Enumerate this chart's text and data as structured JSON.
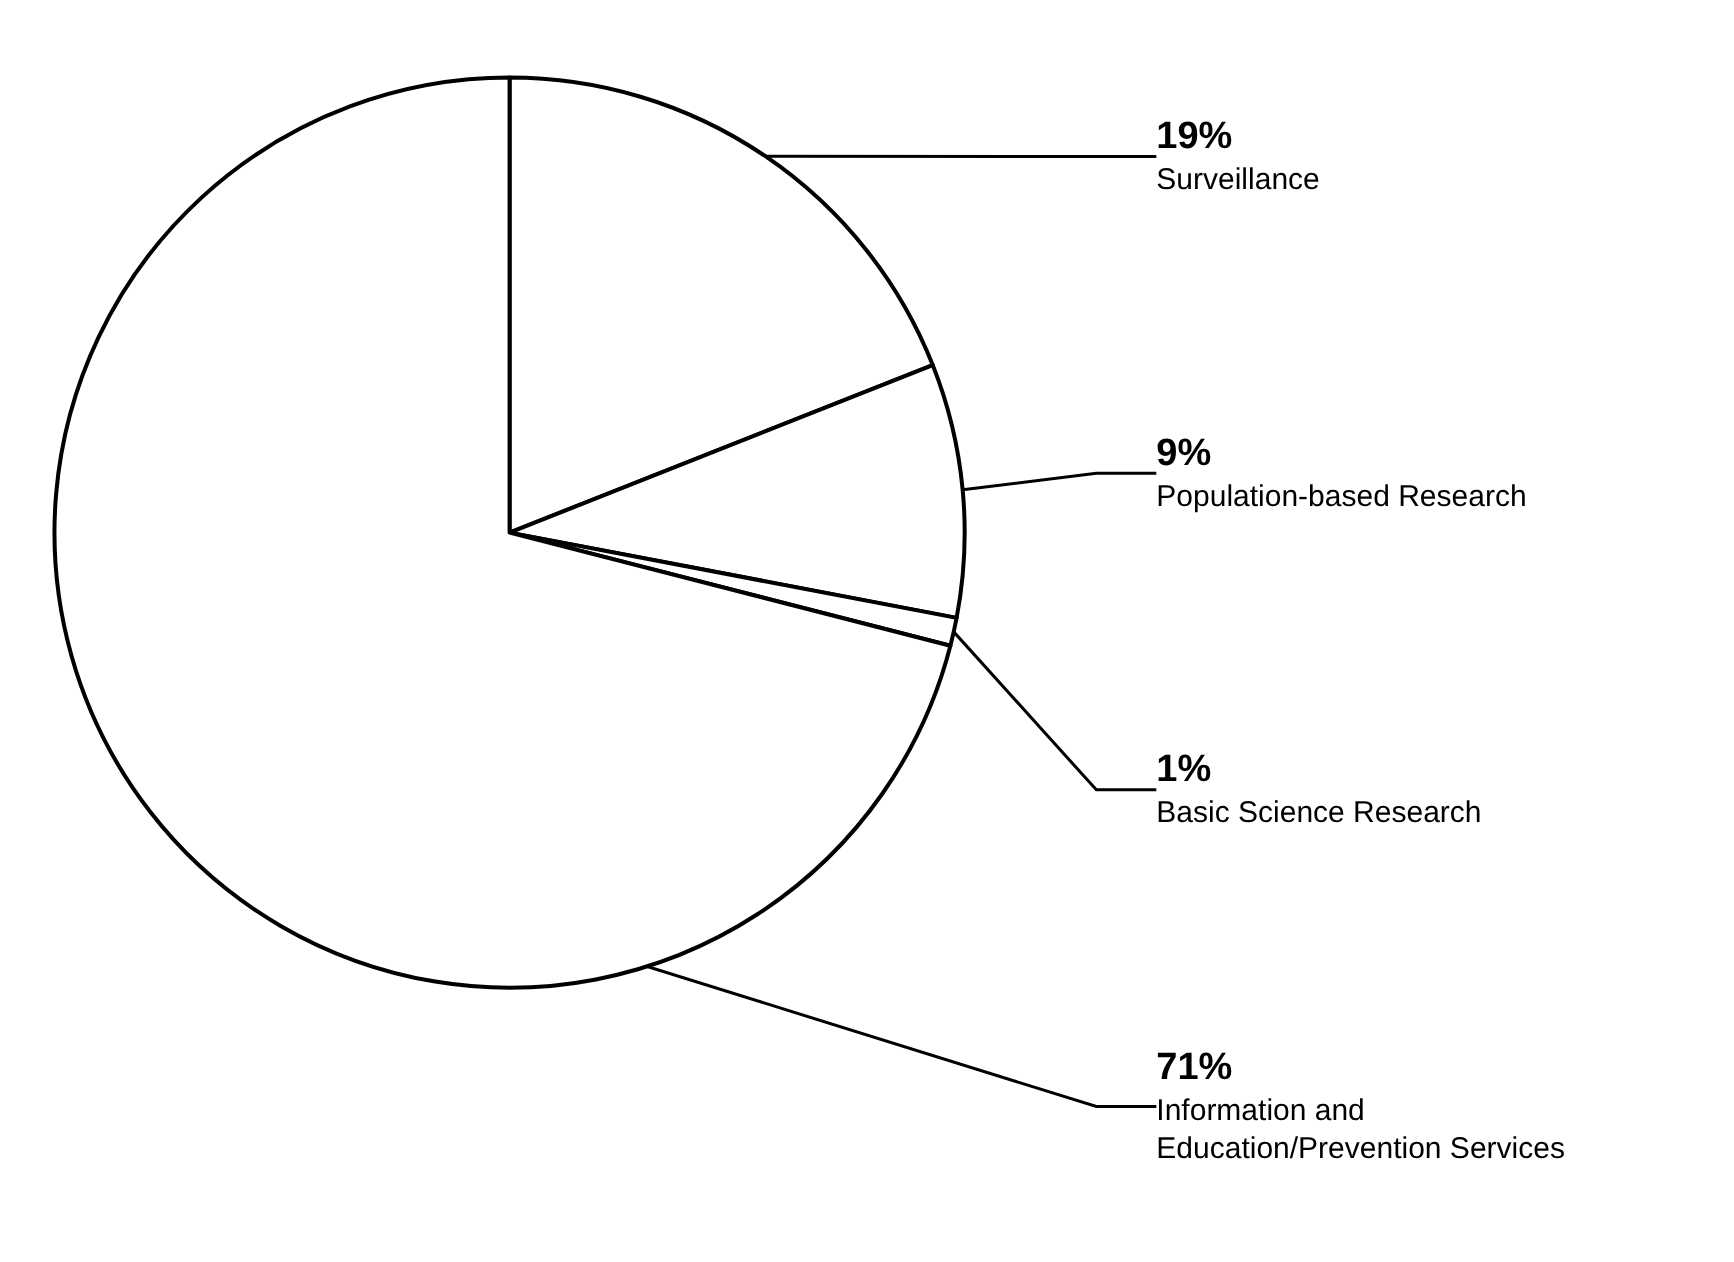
{
  "chart_data": {
    "type": "pie",
    "categories": [
      "Surveillance",
      "Population-based Research",
      "Basic Science Research",
      "Information and\nEducation/Prevention Services"
    ],
    "values": [
      19,
      9,
      1,
      71
    ],
    "value_labels": [
      "19%",
      "9%",
      "1%",
      "71%"
    ],
    "colors": [
      "#ffffff",
      "#ffffff",
      "#ffffff",
      "#ffffff"
    ],
    "legend": false
  }
}
